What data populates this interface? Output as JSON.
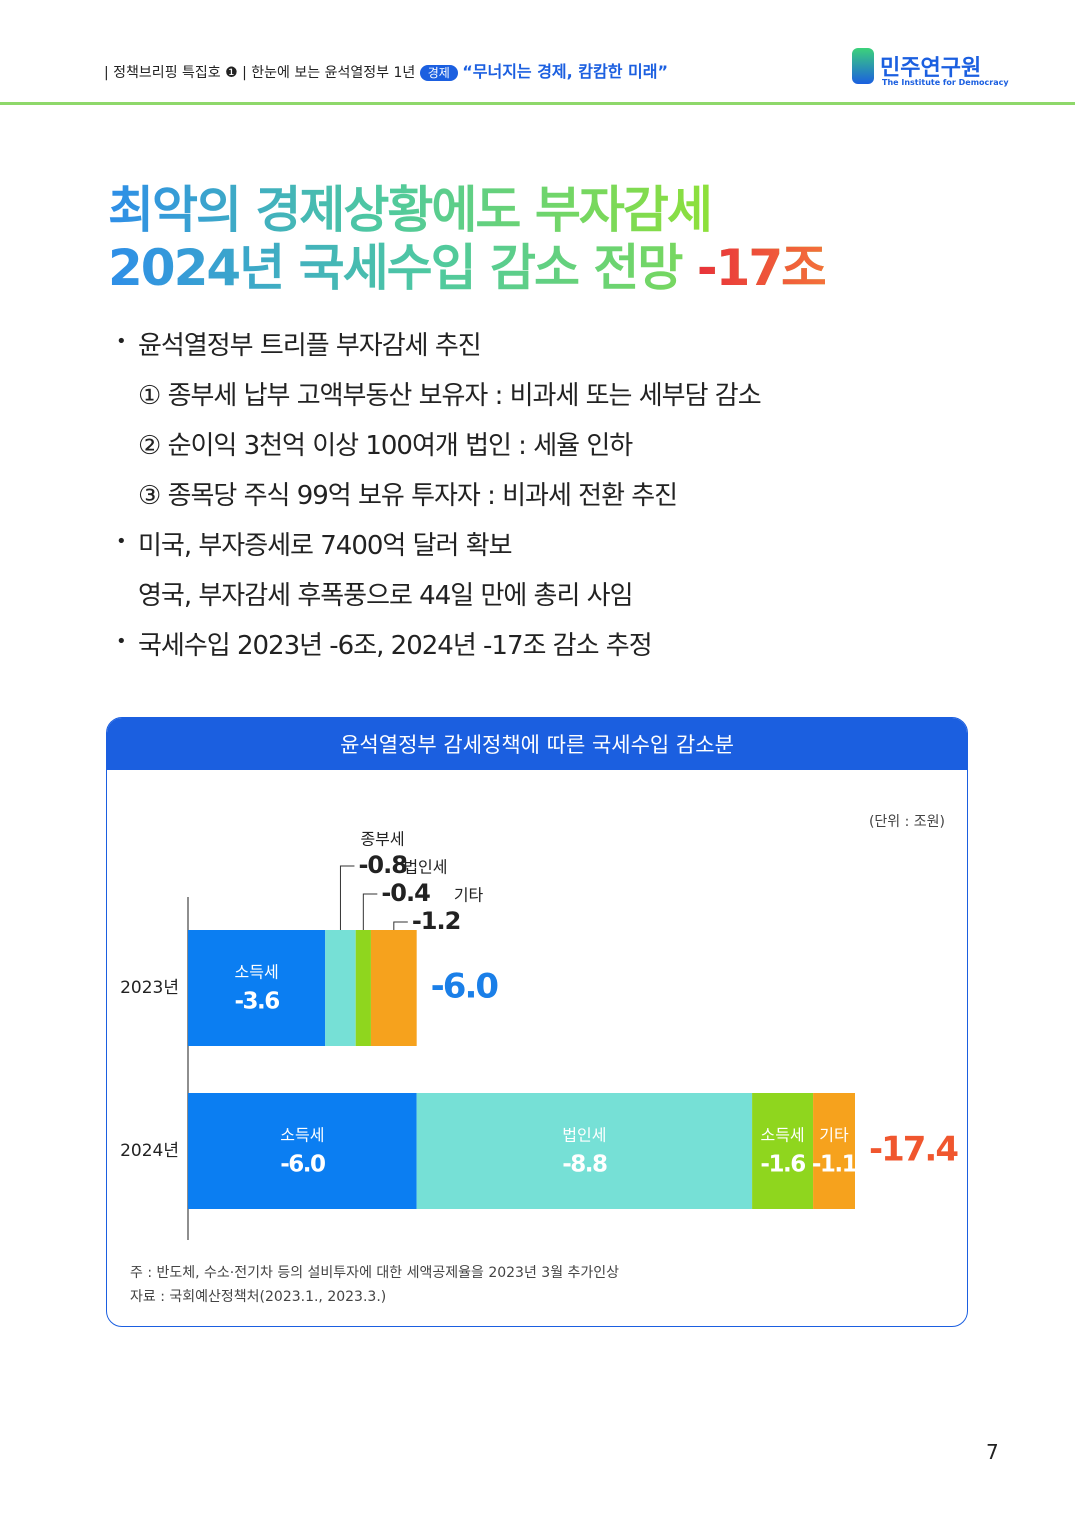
{
  "header": {
    "series": "정책브리핑 특집호 ❶",
    "subtitle": "한눈에 보는 윤석열정부 1년",
    "tag": "경제",
    "quote": "“무너지는 경제, 캄캄한 미래”",
    "logo_name": "민주연구원",
    "logo_sub": "The Institute for Democracy"
  },
  "title": {
    "line1": "최악의 경제상황에도 부자감세",
    "line2": "2024년 국세수입 감소 전망",
    "highlight": "-17조"
  },
  "bullets": [
    {
      "text": "윤석열정부 트리플 부자감세 추진",
      "sub": [
        "① 종부세 납부 고액부동산 보유자 : 비과세 또는 세부담 감소",
        "② 순이익 3천억 이상 100여개 법인 : 세율 인하",
        "③ 종목당 주식 99억 보유 투자자 : 비과세 전환 추진"
      ]
    },
    {
      "text": "미국, 부자증세로 7400억 달러 확보",
      "sub": [
        "영국, 부자감세 후폭풍으로 44일 만에 총리 사임"
      ]
    },
    {
      "text": "국세수입 2023년 -6조, 2024년 -17조 감소 추정",
      "sub": []
    }
  ],
  "chart_data": {
    "type": "stacked-bar",
    "title": "윤석열정부 감세정책에 따른 국세수입 감소분",
    "unit": "(단위 : 조원)",
    "bars": [
      {
        "category": "2023년",
        "total": -6,
        "total_label": "-6.0",
        "total_color": "#1a7fe8",
        "segments": [
          {
            "name": "소득세",
            "color": "#0b7ef2",
            "value": -3.6
          },
          {
            "name": "종부세",
            "color": "#76e0d6",
            "value": -0.8
          },
          {
            "name": "법인세",
            "color": "#8fd61e",
            "value": -0.4
          },
          {
            "name": "기타",
            "color": "#f6a21d",
            "value": -1.2
          }
        ]
      },
      {
        "category": "2024년",
        "total": -17.4,
        "total_color": "#f0562e",
        "segments": [
          {
            "name": "소득세",
            "color": "#0b7ef2",
            "value": -6,
            "value_label": "-6.0"
          },
          {
            "name": "법인세",
            "color": "#76e0d6",
            "value": -8.8
          },
          {
            "name": "소득세",
            "color": "#8fd61e",
            "value": -1.6
          },
          {
            "name": "기타",
            "color": "#f6a21d",
            "value": -1.1
          }
        ]
      }
    ]
  },
  "notes": [
    "주 : 반도체, 수소·전기차 등의 설비투자에 대한 세액공제율을 2023년 3월 추가인상",
    "자료 : 국회예산정책처(2023.1., 2023.3.)"
  ],
  "page_number": "7"
}
